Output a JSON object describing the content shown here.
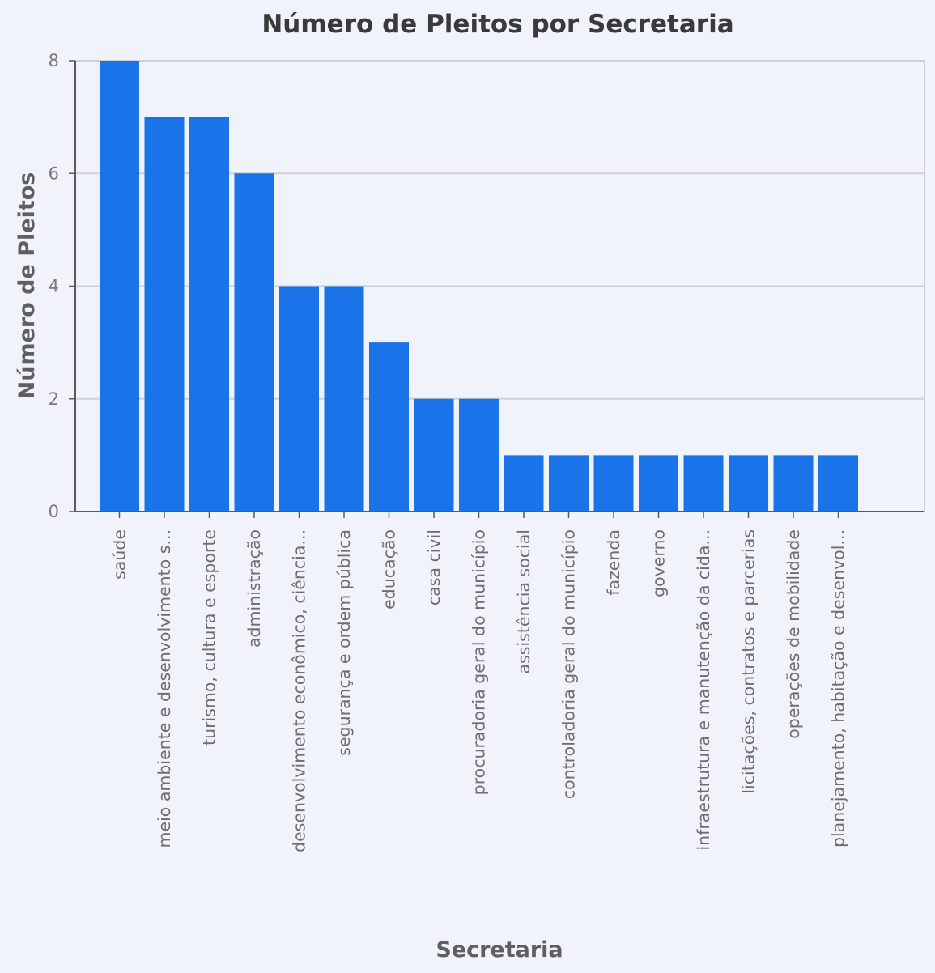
{
  "chart_data": {
    "type": "bar",
    "title": "Número de Pleitos por Secretaria",
    "xlabel": "Secretaria",
    "ylabel": "Número de Pleitos",
    "ylim": [
      0,
      8
    ],
    "yticks": [
      "0",
      "2",
      "4",
      "6",
      "8"
    ],
    "grid": true,
    "categories": [
      "saúde",
      "meio ambiente e desenvolvimento s...",
      "turismo, cultura e esporte",
      "administração",
      "desenvolvimento econômico, ciência...",
      "segurança e ordem pública",
      "educação",
      "casa civil",
      "procuradoria geral do município",
      "assistência social",
      "controladoria geral do município",
      "fazenda",
      "governo",
      "infraestrutura e manutenção da cida...",
      "licitações, contratos e parcerias",
      "operações de mobilidade",
      "planejamento, habitação e desenvol..."
    ],
    "values": [
      8,
      7,
      7,
      6,
      4,
      4,
      3,
      2,
      2,
      1,
      1,
      1,
      1,
      1,
      1,
      1,
      1
    ],
    "colors": {
      "bar": "#1a73e8",
      "background": "#f0f3f9",
      "grid": "#cdd0d4",
      "axis": "#5a5a5a"
    }
  }
}
